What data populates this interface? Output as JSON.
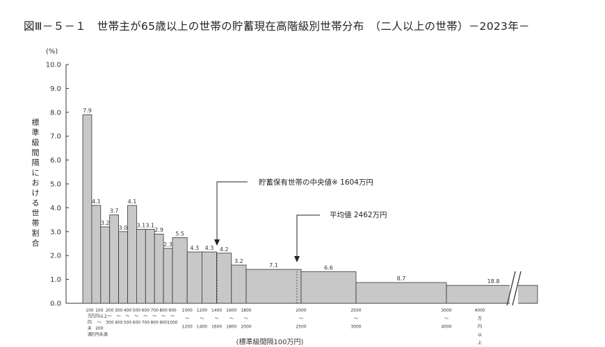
{
  "chart_data": {
    "type": "bar",
    "title": "図Ⅲ－５－１　世帯主が65歳以上の世帯の貯蓄現在高階級別世帯分布　（二人以上の世帯）－2023年－",
    "y_unit": "(%)",
    "ylabel": "標準級間隔における世帯割合",
    "xlabel": "(標準級間隔100万円)",
    "ylim": [
      0,
      10
    ],
    "y_ticks": [
      "0.0",
      "1.0",
      "2.0",
      "3.0",
      "4.0",
      "5.0",
      "6.0",
      "7.0",
      "8.0",
      "9.0",
      "10.0"
    ],
    "categories": [
      "100万円未満",
      "100～200",
      "200～300",
      "300～400",
      "400～500",
      "500～600",
      "600～700",
      "700～800",
      "800～900",
      "900～1000",
      "1000～1200",
      "1200～1400",
      "1400～1600",
      "1600～1800",
      "1800～2000",
      "2000～2500",
      "2500～3000",
      "3000～4000",
      "4000万円以上"
    ],
    "bins": [
      {
        "from": 0,
        "to": 100,
        "value": 7.9,
        "label": "7.9"
      },
      {
        "from": 100,
        "to": 200,
        "value": 4.1,
        "label": "4.1"
      },
      {
        "from": 200,
        "to": 300,
        "value": 3.2,
        "label": "3.2"
      },
      {
        "from": 300,
        "to": 400,
        "value": 3.7,
        "label": "3.7"
      },
      {
        "from": 400,
        "to": 500,
        "value": 3.0,
        "label": "3.0"
      },
      {
        "from": 500,
        "to": 600,
        "value": 4.1,
        "label": "4.1"
      },
      {
        "from": 600,
        "to": 700,
        "value": 3.1,
        "label": "3.1"
      },
      {
        "from": 700,
        "to": 800,
        "value": 3.1,
        "label": "3.1"
      },
      {
        "from": 800,
        "to": 900,
        "value": 2.9,
        "label": "2.9"
      },
      {
        "from": 900,
        "to": 1000,
        "value": 2.3,
        "label": "2.3"
      },
      {
        "from": 1000,
        "to": 1200,
        "value": 2.75,
        "label": "5.5"
      },
      {
        "from": 1200,
        "to": 1400,
        "value": 2.15,
        "label": "4.3"
      },
      {
        "from": 1400,
        "to": 1600,
        "value": 2.15,
        "label": "4.3"
      },
      {
        "from": 1600,
        "to": 1800,
        "value": 2.1,
        "label": "4.2"
      },
      {
        "from": 1800,
        "to": 2000,
        "value": 1.6,
        "label": "3.2"
      },
      {
        "from": 2000,
        "to": 2500,
        "value": 1.42,
        "label": "7.1"
      },
      {
        "from": 2500,
        "to": 3000,
        "value": 1.32,
        "label": "6.6"
      },
      {
        "from": 3000,
        "to": 4000,
        "value": 0.87,
        "label": "8.7"
      },
      {
        "from": 4000,
        "to": null,
        "value": 0.75,
        "label": "18.8"
      }
    ],
    "x_ticks": {
      "b100": [
        "100",
        "万",
        "円",
        "未",
        "満"
      ],
      "b200": [
        "100",
        "万円以上",
        "～",
        "200",
        "万円未満"
      ],
      "b300": [
        "200",
        "～",
        "300"
      ],
      "b400": [
        "300",
        "～",
        "400"
      ],
      "b500": [
        "400",
        "～",
        "500"
      ],
      "b600": [
        "500",
        "～",
        "600"
      ],
      "b700": [
        "600",
        "～",
        "700"
      ],
      "b800": [
        "700",
        "～",
        "800"
      ],
      "b900": [
        "800",
        "～",
        "900"
      ],
      "b1000": [
        "900",
        "～",
        "1000"
      ],
      "w1200": [
        "1000",
        "～",
        "1200"
      ],
      "w1400": [
        "1200",
        "～",
        "1400"
      ],
      "w1600": [
        "1400",
        "～",
        "1600"
      ],
      "w1800": [
        "1600",
        "～",
        "1800"
      ],
      "w2000": [
        "1800",
        "～",
        "2000"
      ],
      "w2500": [
        "2000",
        "～",
        "2500"
      ],
      "w3000": [
        "2500",
        "～",
        "3000"
      ],
      "w4000": [
        "3000",
        "～",
        "4000"
      ],
      "w4000up": [
        "4000",
        "万",
        "円",
        "以",
        "上"
      ]
    },
    "annotations": [
      {
        "text": "貯蓄保有世帯の中央値※ 1604万円",
        "x": 1604
      },
      {
        "text": "平均値 2462万円",
        "x": 2462
      }
    ],
    "colors": {
      "bar_fill": "#c8c8c8",
      "bar_stroke": "#333333",
      "axis": "#333333"
    },
    "grid": false
  }
}
